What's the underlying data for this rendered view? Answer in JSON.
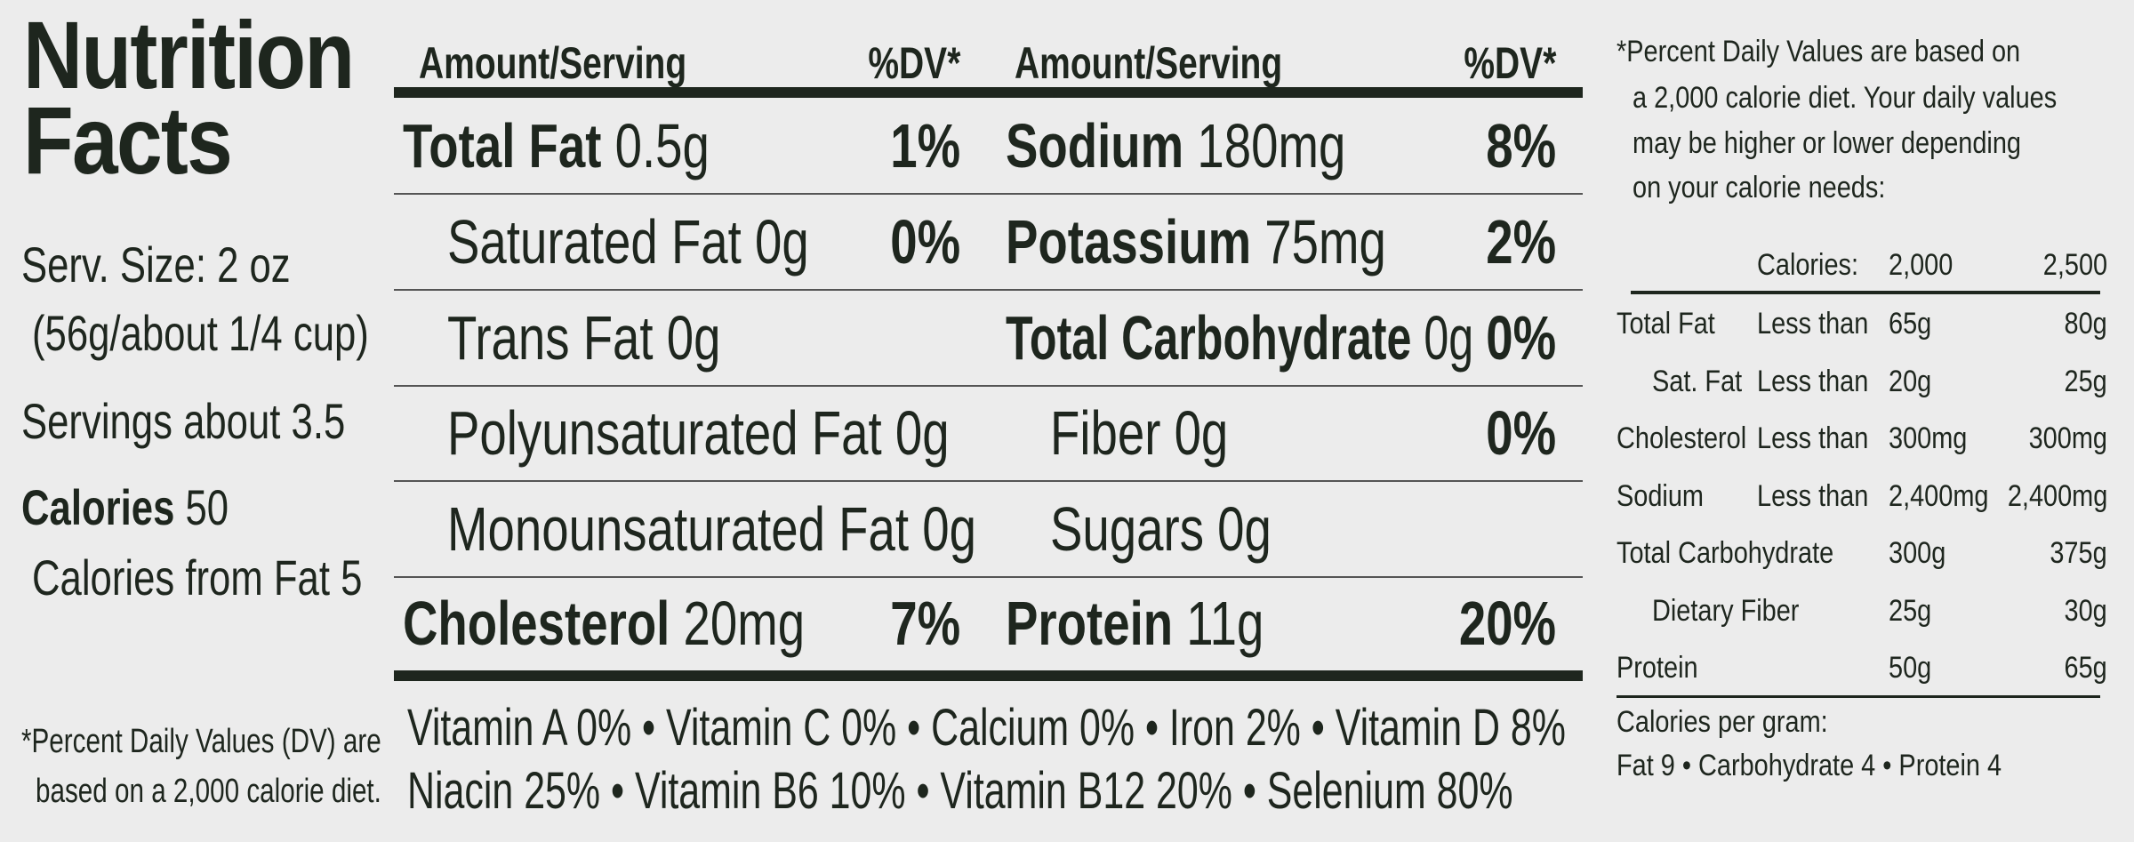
{
  "title": [
    "Nutrition",
    "Facts"
  ],
  "serving": {
    "size_line1": "Serv. Size: 2 oz",
    "size_line2": "(56g/about 1/4 cup)",
    "servings": "Servings about 3.5",
    "calories_label": "Calories",
    "calories_value": "50",
    "calories_from_fat": "Calories from Fat 5"
  },
  "left_footnote": [
    "*Percent Daily Values (DV) are",
    "based on a 2,000 calorie diet."
  ],
  "header": {
    "amount_label": "Amount/Serving",
    "dv_label": "%DV*"
  },
  "rows": [
    {
      "left": {
        "name": "Total Fat",
        "amount": "0.5g",
        "dv": "1%",
        "bold": true,
        "indent": false
      },
      "right": {
        "name": "Sodium",
        "amount": "180mg",
        "dv": "8%",
        "bold": true,
        "indent": false
      }
    },
    {
      "left": {
        "name": "Saturated Fat",
        "amount": "0g",
        "dv": "0%",
        "bold": false,
        "indent": true
      },
      "right": {
        "name": "Potassium",
        "amount": "75mg",
        "dv": "2%",
        "bold": true,
        "indent": false
      }
    },
    {
      "left": {
        "name": "Trans Fat",
        "amount": "0g",
        "dv": "",
        "bold": false,
        "indent": true
      },
      "right": {
        "name": "Total Carbohydrate",
        "amount": "0g",
        "dv": "0%",
        "bold": true,
        "indent": false
      }
    },
    {
      "left": {
        "name": "Polyunsaturated Fat",
        "amount": "0g",
        "dv": "",
        "bold": false,
        "indent": true
      },
      "right": {
        "name": "Fiber",
        "amount": "0g",
        "dv": "0%",
        "bold": false,
        "indent": true
      }
    },
    {
      "left": {
        "name": "Monounsaturated Fat",
        "amount": "0g",
        "dv": "",
        "bold": false,
        "indent": true
      },
      "right": {
        "name": "Sugars",
        "amount": "0g",
        "dv": "",
        "bold": false,
        "indent": true
      }
    },
    {
      "left": {
        "name": "Cholesterol",
        "amount": "20mg",
        "dv": "7%",
        "bold": true,
        "indent": false
      },
      "right": {
        "name": "Protein",
        "amount": "11g",
        "dv": "20%",
        "bold": true,
        "indent": false
      }
    }
  ],
  "vitamins": [
    "Vitamin A 0% • Vitamin C 0% • Calcium 0% • Iron 2% • Vitamin D 8%",
    "Niacin 25% • Vitamin B6 10% • Vitamin B12 20% • Selenium 80%"
  ],
  "dv_note": [
    "*Percent Daily Values are based on",
    "a 2,000  calorie diet. Your daily values",
    "may be higher or lower depending",
    "on your calorie needs:"
  ],
  "dv_table": {
    "header": [
      "Calories:",
      "2,000",
      "2,500"
    ],
    "rows": [
      [
        "Total Fat",
        "Less than",
        "65g",
        "80g"
      ],
      [
        "Sat. Fat",
        "Less than",
        "20g",
        "25g"
      ],
      [
        "Cholesterol",
        "Less than",
        "300mg",
        "300mg"
      ],
      [
        "Sodium",
        "Less than",
        "2,400mg",
        "2,400mg"
      ],
      [
        "Total Carbohydrate",
        "",
        "300g",
        "375g"
      ],
      [
        "Dietary Fiber",
        "",
        "25g",
        "30g"
      ],
      [
        "Protein",
        "",
        "50g",
        "65g"
      ]
    ]
  },
  "calories_per_gram": {
    "label": "Calories per gram:",
    "values": "Fat 9 • Carbohydrate 4 • Protein 4"
  }
}
